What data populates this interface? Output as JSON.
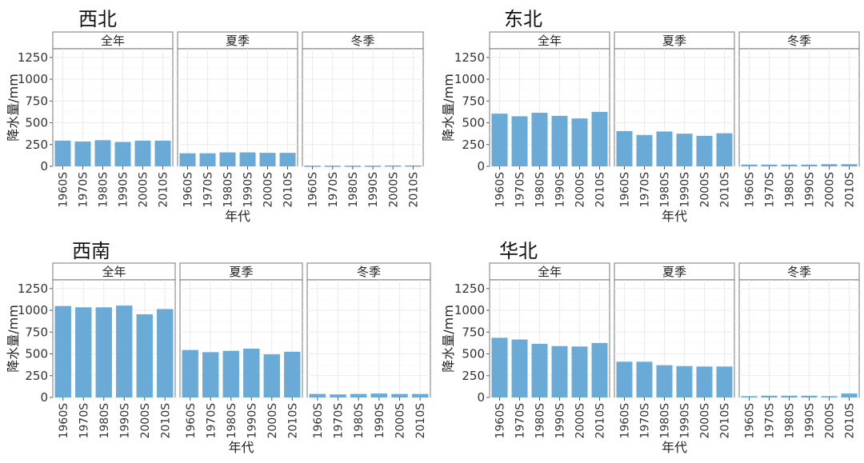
{
  "chart_data": [
    {
      "type": "bar",
      "region": "西北",
      "facets": [
        "全年",
        "夏季",
        "冬季"
      ],
      "categories": [
        "1960S",
        "1970S",
        "1980S",
        "1990S",
        "2000S",
        "2010S"
      ],
      "series": [
        {
          "name": "全年",
          "values": [
            295,
            285,
            300,
            280,
            295,
            295
          ]
        },
        {
          "name": "夏季",
          "values": [
            150,
            150,
            160,
            160,
            155,
            155
          ]
        },
        {
          "name": "冬季",
          "values": [
            8,
            8,
            8,
            8,
            10,
            10
          ]
        }
      ],
      "ylabel": "降水量/mm",
      "xlabel": "年代",
      "yticks": [
        "0",
        "250",
        "500",
        "750",
        "1000",
        "1250"
      ],
      "ylim": [
        0,
        1350
      ]
    },
    {
      "type": "bar",
      "region": "东北",
      "facets": [
        "全年",
        "夏季",
        "冬季"
      ],
      "categories": [
        "1960S",
        "1970S",
        "1980S",
        "1990S",
        "2000S",
        "2010S"
      ],
      "series": [
        {
          "name": "全年",
          "values": [
            605,
            575,
            615,
            580,
            550,
            625
          ]
        },
        {
          "name": "夏季",
          "values": [
            405,
            360,
            400,
            375,
            350,
            380
          ]
        },
        {
          "name": "冬季",
          "values": [
            20,
            20,
            20,
            20,
            25,
            25
          ]
        }
      ],
      "ylabel": "降水量/mm",
      "xlabel": "年代",
      "yticks": [
        "0",
        "250",
        "500",
        "750",
        "1000",
        "1250"
      ],
      "ylim": [
        0,
        1350
      ]
    },
    {
      "type": "bar",
      "region": "西南",
      "facets": [
        "全年",
        "夏季",
        "冬季"
      ],
      "categories": [
        "1960S",
        "1970S",
        "1980S",
        "1990S",
        "2000S",
        "2010S"
      ],
      "series": [
        {
          "name": "全年",
          "values": [
            1050,
            1035,
            1035,
            1055,
            955,
            1015
          ]
        },
        {
          "name": "夏季",
          "values": [
            545,
            520,
            535,
            560,
            495,
            525
          ]
        },
        {
          "name": "冬季",
          "values": [
            40,
            35,
            40,
            45,
            40,
            40
          ]
        }
      ],
      "ylabel": "降水量/mm",
      "xlabel": "年代",
      "yticks": [
        "0",
        "250",
        "500",
        "750",
        "1000",
        "1250"
      ],
      "ylim": [
        0,
        1350
      ]
    },
    {
      "type": "bar",
      "region": "华北",
      "facets": [
        "全年",
        "夏季",
        "冬季"
      ],
      "categories": [
        "1960S",
        "1970S",
        "1980S",
        "1990S",
        "2000S",
        "2010S"
      ],
      "series": [
        {
          "name": "全年",
          "values": [
            685,
            665,
            615,
            590,
            585,
            625
          ]
        },
        {
          "name": "夏季",
          "values": [
            410,
            410,
            370,
            360,
            355,
            355
          ]
        },
        {
          "name": "冬季",
          "values": [
            15,
            20,
            20,
            20,
            15,
            45
          ]
        }
      ],
      "ylabel": "降水量/mm",
      "xlabel": "年代",
      "yticks": [
        "0",
        "250",
        "500",
        "750",
        "1000",
        "1250"
      ],
      "ylim": [
        0,
        1350
      ]
    }
  ],
  "colors": {
    "bar": "#6aaad6"
  }
}
